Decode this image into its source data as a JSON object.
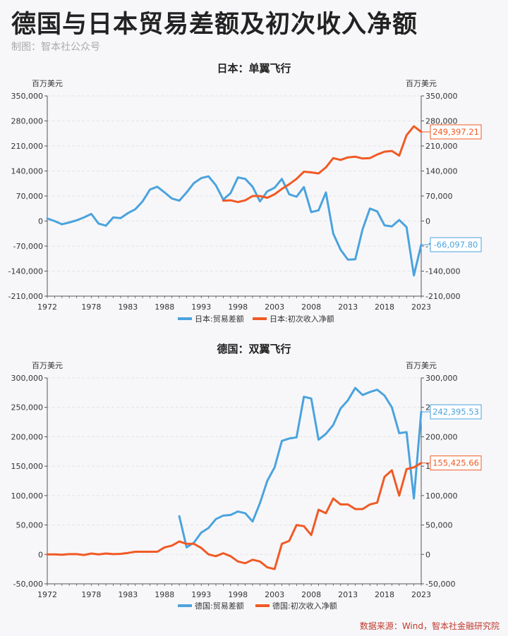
{
  "page": {
    "title": "德国与日本贸易差额及初次收入净额",
    "credit": "制图：智本社公众号",
    "source": "数据来源：Wind，智本社金融研究院"
  },
  "colors": {
    "blue": "#4ba3dd",
    "orange": "#f15a24",
    "grid": "#e3e3e3",
    "axis": "#555555"
  },
  "chart_data": [
    {
      "type": "line",
      "title": "日本：单翼飞行",
      "unit_left": "百万美元",
      "unit_right": "百万美元",
      "ylim": [
        -210000,
        350000
      ],
      "yticks": [
        -210000,
        -140000,
        -70000,
        0,
        70000,
        140000,
        210000,
        280000,
        350000
      ],
      "ytick_labels": [
        "-210,000",
        "-140,000",
        "-70,000",
        "0",
        "70,000",
        "140,000",
        "210,000",
        "280,000",
        "350,000"
      ],
      "xlim": [
        1972,
        2023
      ],
      "xticks": [
        1972,
        1978,
        1983,
        1988,
        1993,
        1998,
        2003,
        2008,
        2013,
        2018,
        2023
      ],
      "xtick_labels": [
        "1972",
        "1978",
        "1983",
        "1988",
        "1993",
        "1998",
        "2003",
        "2008",
        "2013",
        "2018",
        "2023"
      ],
      "grid": true,
      "legend_position": "bottom",
      "series": [
        {
          "name": "日本:贸易差额",
          "color": "#4ba3dd",
          "end_label": "-66,097.80",
          "x": [
            1972,
            1973,
            1974,
            1975,
            1976,
            1977,
            1978,
            1979,
            1980,
            1981,
            1982,
            1983,
            1984,
            1985,
            1986,
            1987,
            1988,
            1989,
            1990,
            1991,
            1992,
            1993,
            1994,
            1995,
            1996,
            1997,
            1998,
            1999,
            2000,
            2001,
            2002,
            2003,
            2004,
            2005,
            2006,
            2007,
            2008,
            2009,
            2010,
            2011,
            2012,
            2013,
            2014,
            2015,
            2016,
            2017,
            2018,
            2019,
            2020,
            2021,
            2022,
            2023
          ],
          "y": [
            7000,
            0,
            -9000,
            -4000,
            2000,
            10000,
            20000,
            -7000,
            -13000,
            10000,
            8000,
            22000,
            33000,
            55000,
            88000,
            96000,
            80000,
            63000,
            57000,
            80000,
            106000,
            120000,
            125000,
            100000,
            60000,
            78000,
            122000,
            118000,
            96000,
            55000,
            83000,
            93000,
            118000,
            75000,
            68000,
            95000,
            25000,
            30000,
            80000,
            -35000,
            -80000,
            -108000,
            -107000,
            -23000,
            35000,
            27000,
            -12000,
            -15000,
            3000,
            -17000,
            -152000,
            -66098
          ]
        },
        {
          "name": "日本:初次收入净额",
          "color": "#f15a24",
          "end_label": "249,397.21",
          "x": [
            1996,
            1997,
            1998,
            1999,
            2000,
            2001,
            2002,
            2003,
            2004,
            2005,
            2006,
            2007,
            2008,
            2009,
            2010,
            2011,
            2012,
            2013,
            2014,
            2015,
            2016,
            2017,
            2018,
            2019,
            2020,
            2021,
            2022,
            2023
          ],
          "y": [
            57000,
            58000,
            53000,
            58000,
            70000,
            70000,
            65000,
            75000,
            90000,
            103000,
            118000,
            138000,
            136000,
            133000,
            150000,
            176000,
            171000,
            178000,
            180000,
            175000,
            176000,
            186000,
            194000,
            196000,
            183000,
            240000,
            265000,
            249397
          ]
        }
      ]
    },
    {
      "type": "line",
      "title": "德国：双翼飞行",
      "unit_left": "百万美元",
      "unit_right": "百万美元",
      "ylim": [
        -50000,
        300000
      ],
      "yticks": [
        -50000,
        0,
        50000,
        100000,
        150000,
        200000,
        250000,
        300000
      ],
      "ytick_labels": [
        "-50,000",
        "0",
        "50,000",
        "100,000",
        "150,000",
        "200,000",
        "250,000",
        "300,000"
      ],
      "xlim": [
        1972,
        2023
      ],
      "xticks": [
        1972,
        1978,
        1983,
        1988,
        1993,
        1998,
        2003,
        2008,
        2013,
        2018,
        2023
      ],
      "xtick_labels": [
        "1972",
        "1978",
        "1983",
        "1988",
        "1993",
        "1998",
        "2003",
        "2008",
        "2013",
        "2018",
        "2023"
      ],
      "grid": true,
      "legend_position": "bottom",
      "series": [
        {
          "name": "德国:贸易差额",
          "color": "#4ba3dd",
          "end_label": "242,395.53",
          "x": [
            1990,
            1991,
            1992,
            1993,
            1994,
            1995,
            1996,
            1997,
            1998,
            1999,
            2000,
            2001,
            2002,
            2003,
            2004,
            2005,
            2006,
            2007,
            2008,
            2009,
            2010,
            2011,
            2012,
            2013,
            2014,
            2015,
            2016,
            2017,
            2018,
            2019,
            2020,
            2021,
            2022,
            2023
          ],
          "y": [
            65000,
            12000,
            20000,
            37000,
            45000,
            60000,
            66000,
            67000,
            73000,
            70000,
            56000,
            87000,
            125000,
            148000,
            193000,
            197000,
            199000,
            268000,
            265000,
            195000,
            205000,
            220000,
            248000,
            262000,
            283000,
            271000,
            276000,
            280000,
            270000,
            250000,
            206000,
            208000,
            95000,
            242396
          ]
        },
        {
          "name": "德国:初次收入净额",
          "color": "#f15a24",
          "end_label": "155,425.66",
          "x": [
            1972,
            1973,
            1974,
            1975,
            1976,
            1977,
            1978,
            1979,
            1980,
            1981,
            1982,
            1983,
            1984,
            1985,
            1986,
            1987,
            1988,
            1989,
            1990,
            1991,
            1992,
            1993,
            1994,
            1995,
            1996,
            1997,
            1998,
            1999,
            2000,
            2001,
            2002,
            2003,
            2004,
            2005,
            2006,
            2007,
            2008,
            2009,
            2010,
            2011,
            2012,
            2013,
            2014,
            2015,
            2016,
            2017,
            2018,
            2019,
            2020,
            2021,
            2022,
            2023
          ],
          "y": [
            0,
            0,
            -500,
            500,
            500,
            -1000,
            1500,
            0,
            1500,
            500,
            1000,
            2500,
            4500,
            4500,
            4500,
            4500,
            12000,
            15000,
            22000,
            18000,
            18000,
            11000,
            0,
            -3000,
            2000,
            -3000,
            -12000,
            -15000,
            -9000,
            -12000,
            -22000,
            -25000,
            18000,
            23000,
            50000,
            48000,
            33000,
            76000,
            70000,
            95000,
            85000,
            85000,
            77000,
            77000,
            85000,
            88000,
            132000,
            143000,
            100000,
            145000,
            148000,
            155426
          ]
        }
      ]
    }
  ]
}
